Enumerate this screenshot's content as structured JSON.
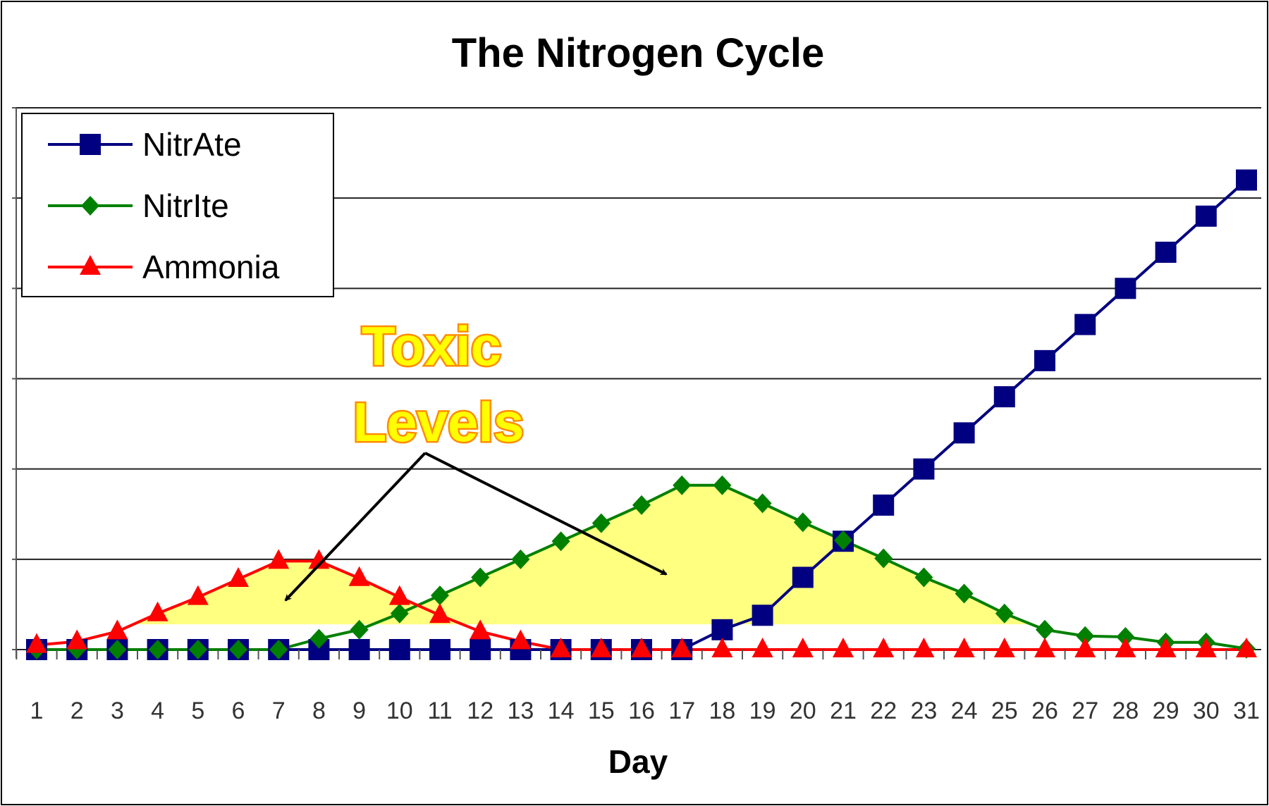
{
  "chart_data": {
    "type": "line",
    "title": "The Nitrogen Cycle",
    "xlabel": "Day",
    "ylabel": "",
    "x": [
      1,
      2,
      3,
      4,
      5,
      6,
      7,
      8,
      9,
      10,
      11,
      12,
      13,
      14,
      15,
      16,
      17,
      18,
      19,
      20,
      21,
      22,
      23,
      24,
      25,
      26,
      27,
      28,
      29,
      30,
      31
    ],
    "ylim": [
      0,
      6
    ],
    "y_ticks_labeled": false,
    "grid": true,
    "legend": "top-left",
    "series": [
      {
        "name": "NitrAte",
        "color": "#000080",
        "marker": "square",
        "values": [
          0,
          0,
          0,
          0,
          0,
          0,
          0,
          0,
          0,
          0,
          0,
          0,
          0,
          0,
          0,
          0,
          0,
          0.22,
          0.38,
          0.8,
          1.2,
          1.6,
          2.0,
          2.4,
          2.8,
          3.2,
          3.6,
          4.0,
          4.4,
          4.8,
          5.2
        ]
      },
      {
        "name": "NitrIte",
        "color": "#008000",
        "marker": "diamond",
        "values": [
          0,
          0,
          0,
          0,
          0,
          0,
          0,
          0.12,
          0.22,
          0.4,
          0.6,
          0.8,
          1.0,
          1.2,
          1.4,
          1.6,
          1.82,
          1.82,
          1.62,
          1.41,
          1.21,
          1.01,
          0.8,
          0.62,
          0.4,
          0.22,
          0.15,
          0.14,
          0.08,
          0.08,
          0.01
        ]
      },
      {
        "name": "Ammonia",
        "color": "#ff0000",
        "marker": "triangle",
        "values": [
          0.05,
          0.09,
          0.2,
          0.4,
          0.58,
          0.78,
          0.98,
          0.98,
          0.79,
          0.58,
          0.38,
          0.2,
          0.09,
          0,
          0,
          0,
          0,
          0,
          0,
          0,
          0,
          0,
          0,
          0,
          0,
          0,
          0,
          0,
          0,
          0,
          0
        ]
      }
    ],
    "annotation": {
      "line1": "Toxic",
      "line2": "Levels",
      "fill": "#ffff00",
      "outline": "#ff8c00"
    },
    "highlight_color": "#ffff80"
  }
}
